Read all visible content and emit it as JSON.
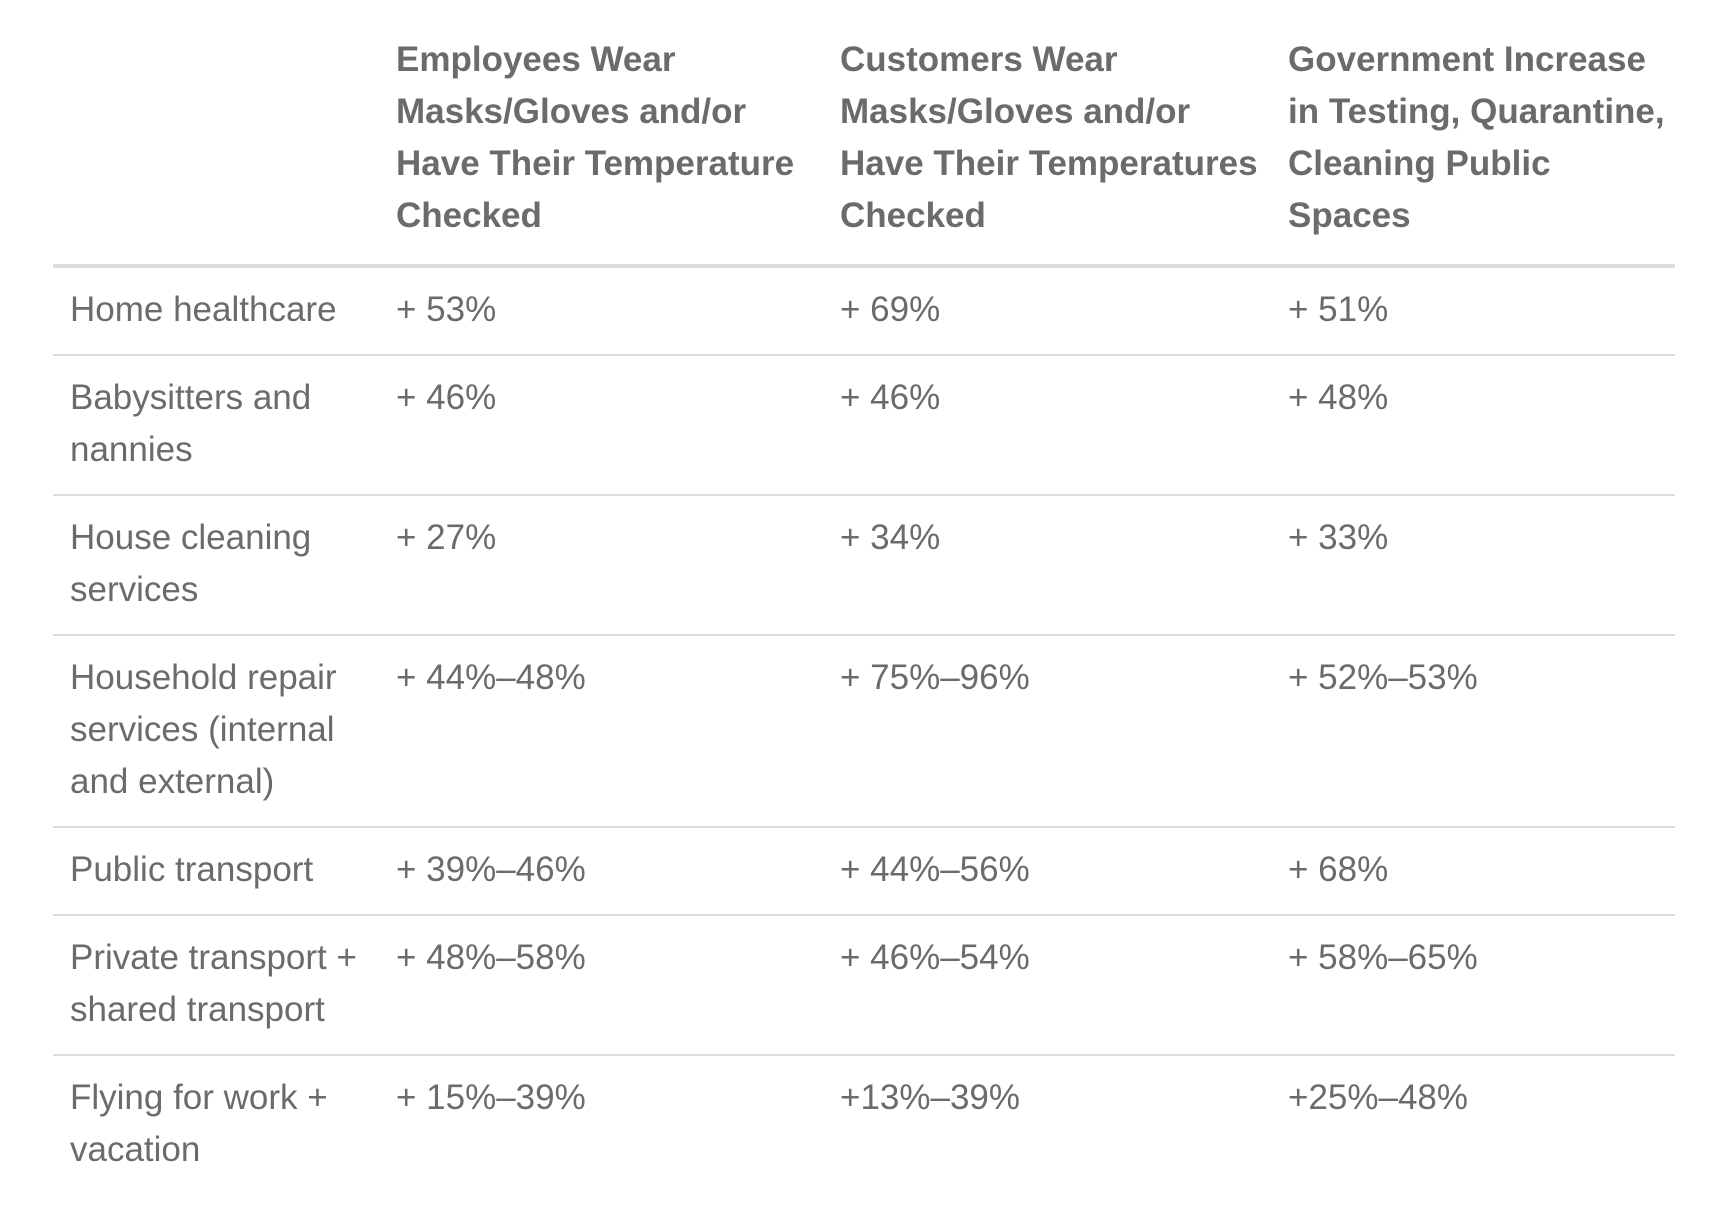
{
  "table": {
    "headers": [
      "",
      "Employees Wear Masks/Gloves and/or Have Their Temperature Checked",
      "Customers Wear Masks/Gloves and/or Have Their Temperatures Checked",
      "Government Increase in Testing, Quarantine, Cleaning Public Spaces"
    ],
    "rows": [
      {
        "category": "Home healthcare",
        "employees": "+ 53%",
        "customers": "+ 69%",
        "government": "+ 51%"
      },
      {
        "category": "Babysitters and nannies",
        "employees": "+ 46%",
        "customers": "+ 46%",
        "government": "+ 48%"
      },
      {
        "category": "House cleaning services",
        "employees": "+ 27%",
        "customers": "+ 34%",
        "government": "+ 33%"
      },
      {
        "category": "Household repair services (internal and external)",
        "employees": "+ 44%–48%",
        "customers": "+ 75%–96%",
        "government": "+ 52%–53%"
      },
      {
        "category": "Public transport",
        "employees": "+ 39%–46%",
        "customers": "+ 44%–56%",
        "government": "+ 68%"
      },
      {
        "category": "Private transport + shared transport",
        "employees": "+ 48%–58%",
        "customers": "+ 46%–54%",
        "government": "+ 58%–65%"
      },
      {
        "category": "Flying for work + vacation",
        "employees": "+ 15%–39%",
        "customers": "+13%–39%",
        "government": "+25%–48%"
      }
    ]
  }
}
